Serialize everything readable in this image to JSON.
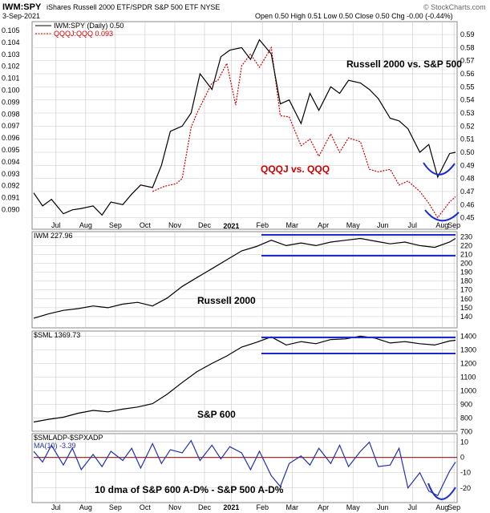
{
  "header": {
    "symbol": "IWM:SPY",
    "description": "iShares Russell 2000 ETF/SPDR S&P 500 ETF  NYSE",
    "date": "3-Sep-2021",
    "ohlc": "Open 0.50  High 0.51  Low 0.50  Close 0.50  Chg -0.00 (-0.44%)",
    "watermark": "© StockCharts.com"
  },
  "colors": {
    "price_line": "#000000",
    "qqqj_line": "#cc0000",
    "annotation_red": "#cc0000",
    "trend_blue": "#1a2bcc",
    "breadth_line": "#2233aa",
    "zero_line": "#8b1a1a",
    "grid": "#c8c8c8"
  },
  "x_axis_labels": [
    "Jul",
    "Aug",
    "Sep",
    "Oct",
    "Nov",
    "Dec",
    "2021",
    "Feb",
    "Mar",
    "Apr",
    "May",
    "Jun",
    "Jul",
    "Aug",
    "Sep"
  ],
  "chart_data": [
    {
      "type": "line",
      "panel": "IWM:SPY ratio",
      "legend": [
        "IWM:SPY (Daily) 0.50",
        "QQQJ:QQQ 0.093"
      ],
      "left_ticks": [
        "0.105",
        "0.104",
        "0.103",
        "0.102",
        "0.101",
        "0.100",
        "0.099",
        "0.098",
        "0.097",
        "0.096",
        "0.095",
        "0.094",
        "0.093",
        "0.092",
        "0.091",
        "0.090"
      ],
      "right_ticks": [
        "0.59",
        "0.58",
        "0.57",
        "0.56",
        "0.55",
        "0.54",
        "0.53",
        "0.52",
        "0.51",
        "0.50",
        "0.49",
        "0.48",
        "0.47",
        "0.46",
        "0.45"
      ],
      "annotations": [
        "Russell 2000 vs. S&P 500",
        "QQQJ vs. QQQ"
      ],
      "ylim_right": [
        0.443,
        0.598
      ],
      "series": [
        {
          "name": "IWM:SPY (Daily) 0.50",
          "axis": "right",
          "x": [
            0,
            0.3,
            0.6,
            1,
            1.3,
            1.6,
            2,
            2.3,
            2.6,
            3,
            3.3,
            3.6,
            4,
            4.3,
            4.6,
            5,
            5.3,
            5.6,
            6,
            6.3,
            6.6,
            7,
            7.3,
            7.6,
            8,
            8.3,
            8.6,
            9,
            9.3,
            9.6,
            10,
            10.3,
            10.6,
            11,
            11.3,
            11.6,
            12,
            12.3,
            12.6,
            13,
            13.3,
            13.6,
            14,
            14.2
          ],
          "values": [
            0.469,
            0.459,
            0.464,
            0.453,
            0.456,
            0.457,
            0.459,
            0.452,
            0.462,
            0.46,
            0.468,
            0.475,
            0.473,
            0.49,
            0.516,
            0.52,
            0.53,
            0.56,
            0.548,
            0.573,
            0.578,
            0.58,
            0.571,
            0.586,
            0.575,
            0.537,
            0.54,
            0.522,
            0.545,
            0.532,
            0.55,
            0.545,
            0.555,
            0.553,
            0.548,
            0.541,
            0.526,
            0.524,
            0.518,
            0.5,
            0.506,
            0.481,
            0.499,
            0.5
          ]
        },
        {
          "name": "QQQJ:QQQ 0.093",
          "axis": "right",
          "x": [
            4,
            4.4,
            4.8,
            5,
            5.3,
            5.5,
            6,
            6.2,
            6.5,
            6.8,
            7,
            7.3,
            7.6,
            8,
            8.3,
            8.6,
            9,
            9.3,
            9.6,
            10,
            10.3,
            10.6,
            11,
            11.3,
            11.6,
            12,
            12.3,
            12.6,
            13,
            13.3,
            13.6,
            14,
            14.2
          ],
          "values": [
            0.47,
            0.474,
            0.476,
            0.48,
            0.519,
            0.53,
            0.553,
            0.555,
            0.568,
            0.536,
            0.566,
            0.575,
            0.565,
            0.58,
            0.528,
            0.527,
            0.505,
            0.51,
            0.497,
            0.514,
            0.5,
            0.511,
            0.508,
            0.487,
            0.485,
            0.487,
            0.475,
            0.478,
            0.47,
            0.461,
            0.45,
            0.462,
            0.466
          ]
        }
      ]
    },
    {
      "type": "line",
      "panel": "Russell 2000",
      "legend": [
        "IWM 227.96"
      ],
      "annotations": [
        "Russell 2000"
      ],
      "right_ticks": [
        "230",
        "220",
        "210",
        "200",
        "190",
        "180",
        "170",
        "160",
        "150",
        "140"
      ],
      "ylim": [
        130,
        233
      ],
      "series": [
        {
          "name": "IWM 227.96",
          "x": [
            0,
            0.5,
            1,
            1.5,
            2,
            2.5,
            3,
            3.5,
            4,
            4.5,
            5,
            5.5,
            6,
            6.5,
            7,
            7.5,
            8,
            8.5,
            9,
            9.5,
            10,
            10.5,
            11,
            11.5,
            12,
            12.5,
            13,
            13.5,
            14,
            14.2
          ],
          "values": [
            138,
            143,
            147,
            149,
            152,
            150,
            154,
            156,
            152,
            161,
            174,
            184,
            194,
            204,
            214,
            219,
            226,
            220,
            223,
            220,
            224,
            226,
            228,
            225,
            222,
            224,
            220,
            218,
            224,
            228
          ]
        }
      ]
    },
    {
      "type": "line",
      "panel": "S&P 600",
      "legend": [
        "$SML 1369.73"
      ],
      "annotations": [
        "S&P 600"
      ],
      "right_ticks": [
        "1400",
        "1300",
        "1200",
        "1100",
        "1000",
        "900",
        "800",
        "700"
      ],
      "ylim": [
        720,
        1420
      ],
      "series": [
        {
          "name": "$SML 1369.73",
          "x": [
            0,
            0.5,
            1,
            1.5,
            2,
            2.5,
            3,
            3.5,
            4,
            4.5,
            5,
            5.5,
            6,
            6.5,
            7,
            7.5,
            8,
            8.5,
            9,
            9.5,
            10,
            10.5,
            11,
            11.5,
            12,
            12.5,
            13,
            13.5,
            14,
            14.2
          ],
          "values": [
            770,
            790,
            805,
            835,
            855,
            845,
            865,
            880,
            905,
            975,
            1060,
            1140,
            1200,
            1255,
            1320,
            1355,
            1395,
            1335,
            1360,
            1345,
            1375,
            1380,
            1400,
            1385,
            1350,
            1360,
            1345,
            1335,
            1365,
            1370
          ]
        }
      ]
    },
    {
      "type": "line",
      "panel": "Breadth",
      "legend": [
        "$SMLADP-$SPXADP",
        "MA(10) -3.39"
      ],
      "annotations": [
        "10 dma of S&P 600 A-D% - S&P 500 A-D%"
      ],
      "right_ticks": [
        "10",
        "0",
        "-10",
        "-20"
      ],
      "ylim": [
        -28,
        14
      ],
      "series": [
        {
          "name": "MA(10) -3.39",
          "x": [
            0,
            0.3,
            0.6,
            1,
            1.3,
            1.6,
            2,
            2.3,
            2.6,
            3,
            3.3,
            3.6,
            4,
            4.3,
            4.6,
            5,
            5.3,
            5.6,
            6,
            6.3,
            6.6,
            7,
            7.3,
            7.6,
            8,
            8.3,
            8.6,
            9,
            9.3,
            9.6,
            10,
            10.3,
            10.6,
            11,
            11.3,
            11.6,
            12,
            12.3,
            12.6,
            13,
            13.3,
            13.6,
            14,
            14.2
          ],
          "values": [
            4,
            -3,
            8,
            -5,
            6,
            -8,
            2,
            -6,
            4,
            -2,
            6,
            -7,
            9,
            -4,
            5,
            3,
            11,
            -2,
            8,
            -1,
            7,
            3,
            -8,
            4,
            -12,
            -19,
            -4,
            1,
            -5,
            6,
            -4,
            8,
            -6,
            4,
            10,
            -6,
            -5,
            6,
            -20,
            -10,
            -22,
            -25,
            -9,
            -3
          ]
        }
      ]
    }
  ]
}
